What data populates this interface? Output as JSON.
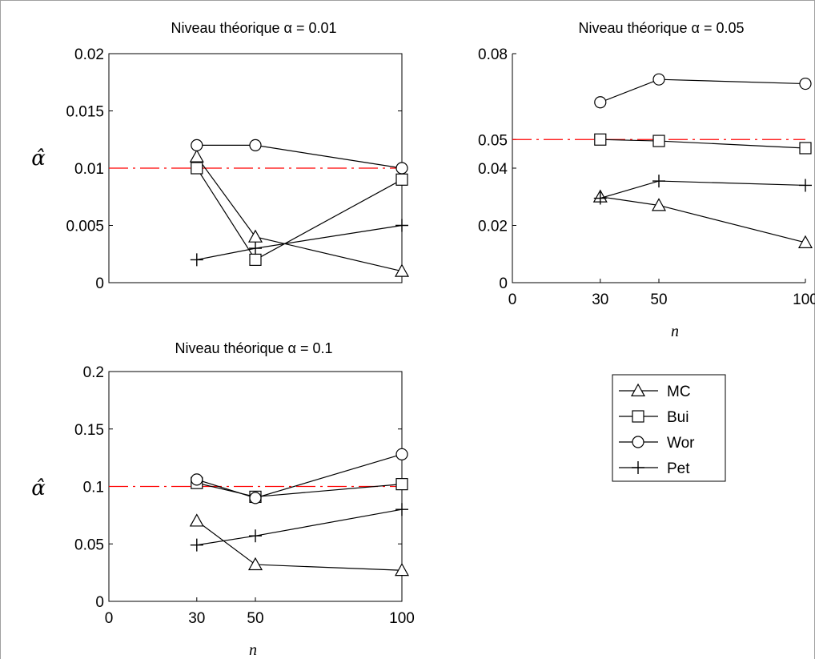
{
  "chart_data": [
    {
      "type": "line",
      "title": "Niveau théorique α = 0.01",
      "ylabel": "α̂",
      "xlabel": "",
      "xlim": [
        0,
        100
      ],
      "ylim": [
        0,
        0.02
      ],
      "xticks": [],
      "xticklabels": [],
      "yticks": [
        0,
        0.005,
        0.01,
        0.015,
        0.02
      ],
      "yticklabels": [
        "0",
        "0.005",
        "0.01",
        "0.015",
        "0.02"
      ],
      "reference_line": {
        "y": 0.01,
        "color": "#ff0000",
        "style": "dash-dot"
      },
      "series": [
        {
          "marker": "triangle",
          "x": [
            30,
            50,
            100
          ],
          "values": [
            0.011,
            0.004,
            0.001
          ]
        },
        {
          "marker": "square",
          "x": [
            30,
            50,
            100
          ],
          "values": [
            0.01,
            0.002,
            0.009
          ]
        },
        {
          "marker": "diamond",
          "x": [
            30,
            50,
            100
          ],
          "values": [
            0.012,
            0.012,
            0.01
          ]
        },
        {
          "marker": "plus",
          "x": [
            30,
            50,
            100
          ],
          "values": [
            0.002,
            0.003,
            0.005
          ]
        }
      ]
    },
    {
      "type": "line",
      "title": "Niveau théorique α = 0.05",
      "ylabel": "",
      "xlabel": "n",
      "xlim": [
        0,
        100
      ],
      "ylim": [
        0,
        0.08
      ],
      "xticks": [
        0,
        30,
        50,
        100
      ],
      "xticklabels": [
        "0",
        "30",
        "50",
        "100"
      ],
      "yticks": [
        0,
        0.02,
        0.04,
        0.05,
        0.08
      ],
      "yticklabels": [
        "0",
        "0.02",
        "0.04",
        "0.05",
        "0.08"
      ],
      "reference_line": {
        "y": 0.05,
        "color": "#ff0000",
        "style": "dash-dot"
      },
      "series": [
        {
          "marker": "triangle",
          "x": [
            30,
            50,
            100
          ],
          "values": [
            0.03,
            0.027,
            0.014
          ]
        },
        {
          "marker": "square",
          "x": [
            30,
            50,
            100
          ],
          "values": [
            0.05,
            0.0495,
            0.047
          ]
        },
        {
          "marker": "diamond",
          "x": [
            30,
            50,
            100
          ],
          "values": [
            0.063,
            0.071,
            0.0695
          ]
        },
        {
          "marker": "plus",
          "x": [
            30,
            50,
            100
          ],
          "values": [
            0.0295,
            0.0355,
            0.034
          ]
        }
      ]
    },
    {
      "type": "line",
      "title": "Niveau théorique α = 0.1",
      "ylabel": "α̂",
      "xlabel": "n",
      "xlim": [
        0,
        100
      ],
      "ylim": [
        0,
        0.2
      ],
      "xticks": [
        0,
        30,
        50,
        100
      ],
      "xticklabels": [
        "0",
        "30",
        "50",
        "100"
      ],
      "yticks": [
        0,
        0.05,
        0.1,
        0.15,
        0.2
      ],
      "yticklabels": [
        "0",
        "0.05",
        "0.1",
        "0.15",
        "0.2"
      ],
      "reference_line": {
        "y": 0.1,
        "color": "#ff0000",
        "style": "dash-dot"
      },
      "series": [
        {
          "marker": "triangle",
          "x": [
            30,
            50,
            100
          ],
          "values": [
            0.07,
            0.032,
            0.027
          ]
        },
        {
          "marker": "square",
          "x": [
            30,
            50,
            100
          ],
          "values": [
            0.103,
            0.091,
            0.102
          ]
        },
        {
          "marker": "diamond",
          "x": [
            30,
            50,
            100
          ],
          "values": [
            0.106,
            0.09,
            0.128
          ]
        },
        {
          "marker": "plus",
          "x": [
            30,
            50,
            100
          ],
          "values": [
            0.049,
            0.057,
            0.08
          ]
        }
      ]
    }
  ],
  "legend": {
    "placement": "bottom-right",
    "entries": [
      {
        "label": "MC",
        "marker": "triangle"
      },
      {
        "label": "Bui",
        "marker": "square"
      },
      {
        "label": "Wor",
        "marker": "diamond"
      },
      {
        "label": "Pet",
        "marker": "plus"
      }
    ]
  },
  "colors": {
    "series": "#000000",
    "reference": "#ff0000",
    "background": "#ffffff"
  }
}
